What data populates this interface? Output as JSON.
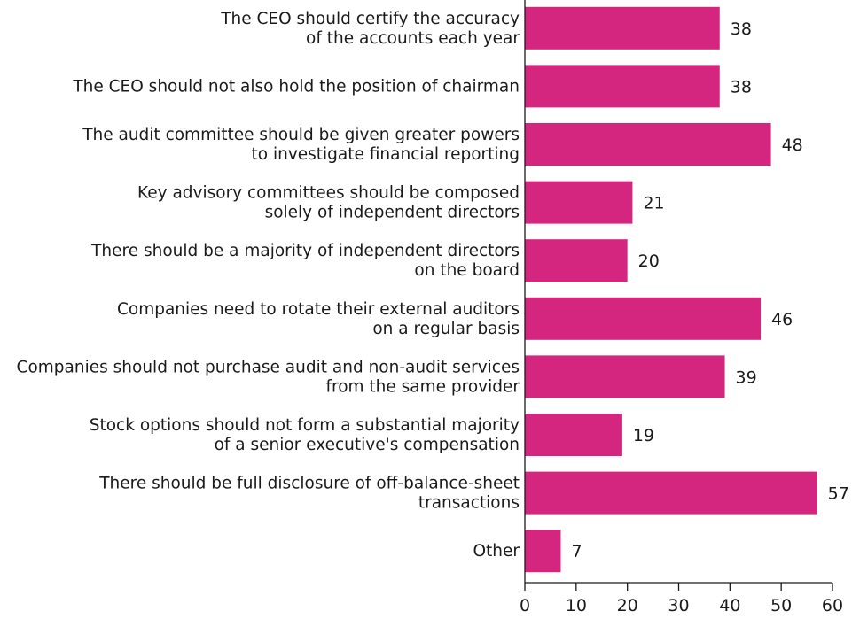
{
  "chart_data": {
    "type": "bar",
    "orientation": "horizontal",
    "title": "",
    "xlabel": "",
    "ylabel": "",
    "categories": [
      [
        "The CEO should certify the accuracy",
        "of the accounts each year"
      ],
      [
        "The CEO should not also hold the position of chairman"
      ],
      [
        "The audit committee should be given greater powers",
        "to investigate financial reporting"
      ],
      [
        "Key advisory committees should be composed",
        "solely of independent directors"
      ],
      [
        "There should be a majority of independent directors",
        "on the board"
      ],
      [
        "Companies need to rotate their external auditors",
        "on a regular basis"
      ],
      [
        "Companies should not purchase audit and non-audit services",
        "from the same provider"
      ],
      [
        "Stock options should not form a substantial majority",
        "of a senior executive's compensation"
      ],
      [
        "There should be full disclosure of off-balance-sheet",
        "transactions"
      ],
      [
        "Other"
      ]
    ],
    "values": [
      38,
      38,
      48,
      21,
      20,
      46,
      39,
      19,
      57,
      7
    ],
    "value_labels": [
      "38",
      "38",
      "48",
      "21",
      "20",
      "46",
      "39",
      "19",
      "57",
      "7"
    ],
    "xlim": [
      0,
      60
    ],
    "xticks": [
      0,
      10,
      20,
      30,
      40,
      50,
      60
    ],
    "xtick_labels": [
      "0",
      "10",
      "20",
      "30",
      "40",
      "50",
      "60"
    ],
    "bar_color": "#d4267e",
    "grid": false,
    "legend": "none"
  }
}
